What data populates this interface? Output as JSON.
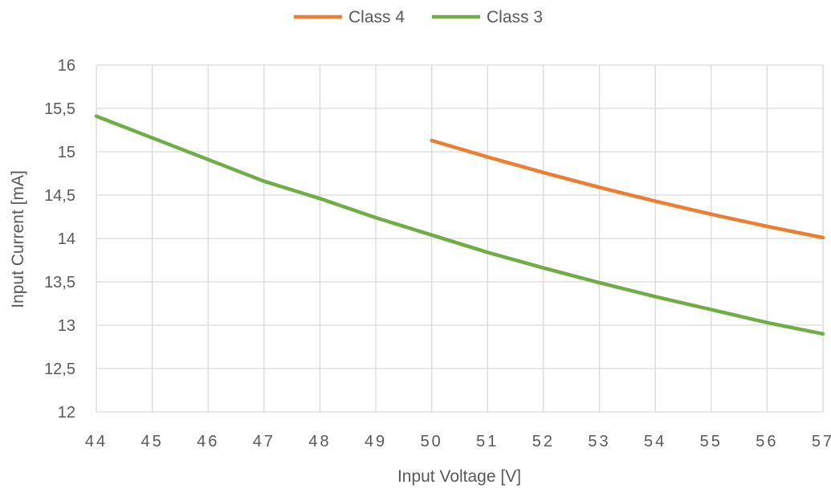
{
  "chart_data": {
    "type": "line",
    "xlabel": "Input Voltage [V]",
    "ylabel": "Input Current [mA]",
    "xlim": [
      44,
      57
    ],
    "ylim": [
      12,
      16
    ],
    "x_ticks": [
      "44",
      "45",
      "46",
      "47",
      "48",
      "49",
      "50",
      "51",
      "52",
      "53",
      "54",
      "55",
      "56",
      "57"
    ],
    "y_ticks": [
      "12",
      "12,5",
      "13",
      "13,5",
      "14",
      "14,5",
      "15",
      "15,5",
      "16"
    ],
    "grid": true,
    "legend_position": "top",
    "series": [
      {
        "name": "Class 4",
        "color": "#ED7D31",
        "x": [
          50,
          51,
          52,
          53,
          54,
          55,
          56,
          57
        ],
        "y": [
          15.13,
          14.94,
          14.76,
          14.59,
          14.43,
          14.28,
          14.14,
          14.01
        ]
      },
      {
        "name": "Class 3",
        "color": "#70AD47",
        "x": [
          44,
          45,
          46,
          47,
          48,
          49,
          50,
          51,
          52,
          53,
          54,
          55,
          56,
          57
        ],
        "y": [
          15.41,
          15.16,
          14.91,
          14.66,
          14.46,
          14.24,
          14.04,
          13.84,
          13.66,
          13.49,
          13.33,
          13.18,
          13.03,
          12.9
        ]
      }
    ]
  }
}
